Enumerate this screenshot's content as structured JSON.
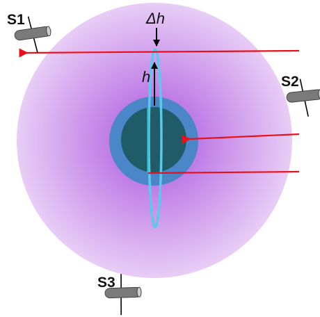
{
  "labels": {
    "s1": "S1",
    "s2": "S2",
    "s3": "S3",
    "delta_h": "Δh",
    "h": "h"
  },
  "colors": {
    "atmosphere_outer": "#e6c8f5",
    "atmosphere_inner": "#b36be6",
    "ionosphere_layer": "#4a86c8",
    "planet_core": "#1f5c68",
    "orbit_ring": "#5cc8ec",
    "signal_ray": "#e8101a",
    "satellite_body": "#7a7a7a",
    "arrow": "#000000"
  },
  "icons": {
    "satellite": "satellite-icon",
    "arrow": "arrow-icon"
  }
}
